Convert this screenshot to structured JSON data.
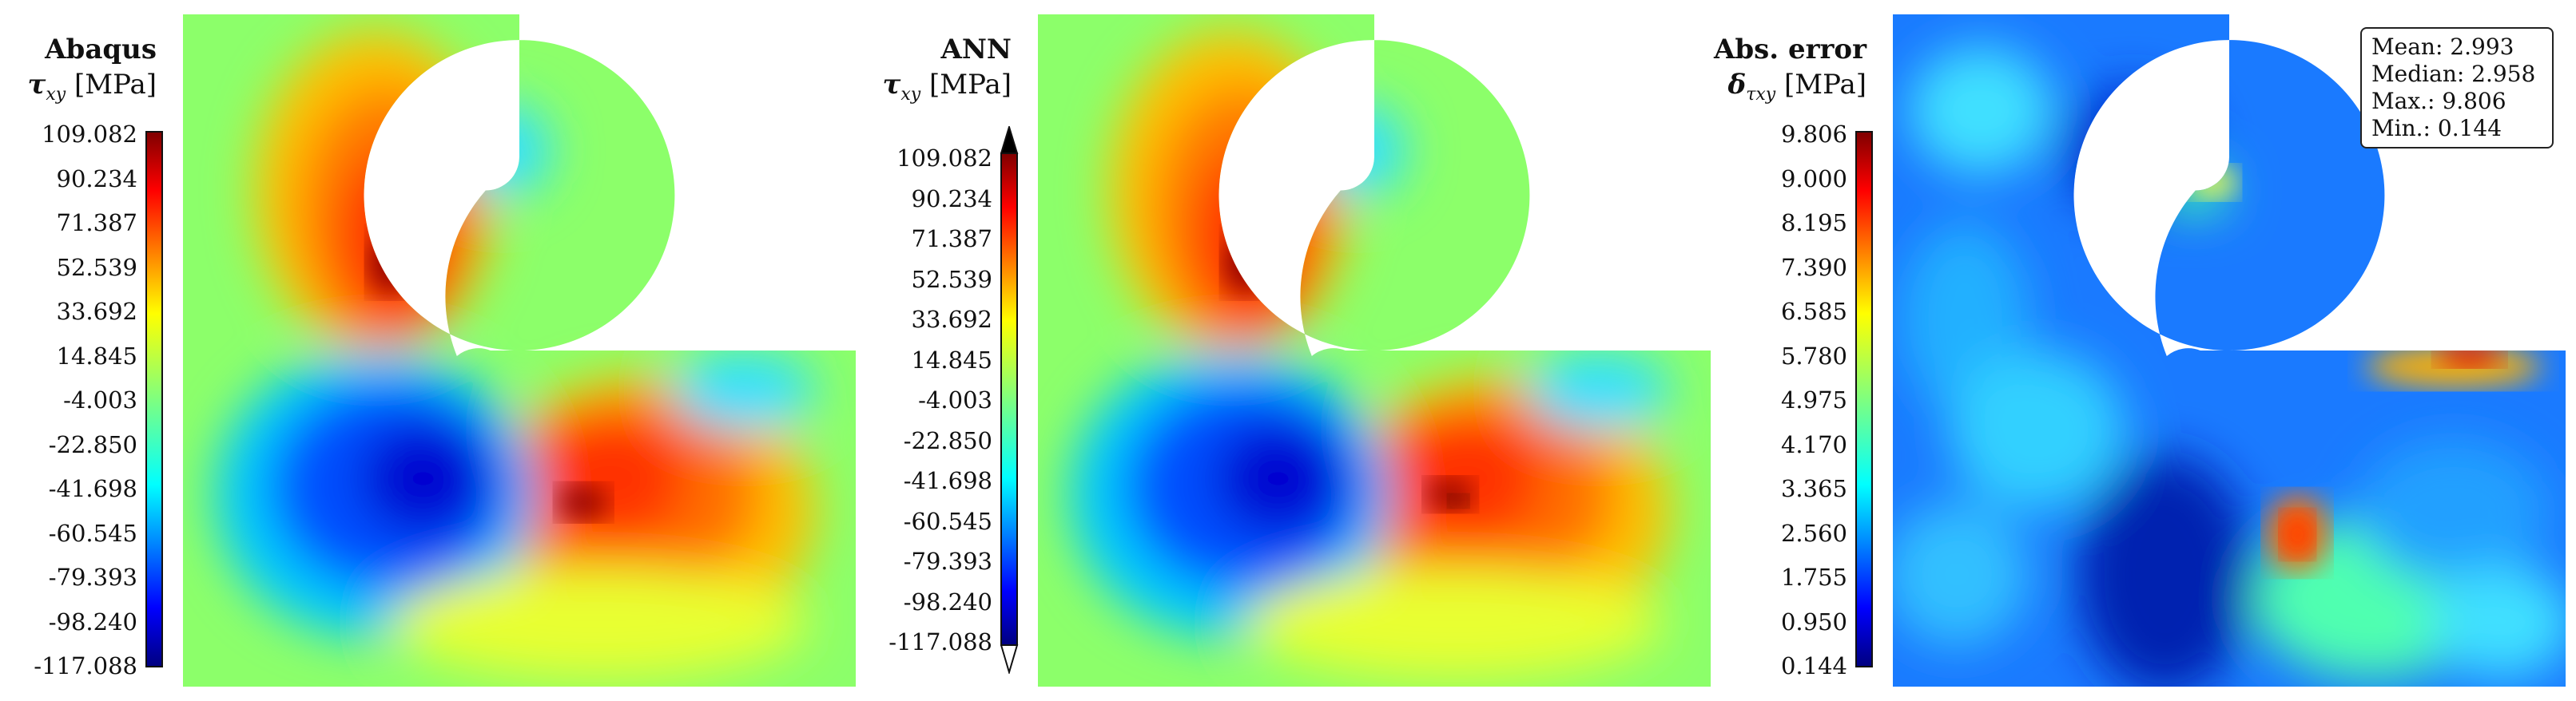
{
  "panels": [
    {
      "id": "abaqus",
      "title": "Abaqus",
      "quantity_symbol": "τ",
      "quantity_subscript": "xy",
      "unit": "[MPa]",
      "colorbar_ticks": [
        "109.082",
        "90.234",
        "71.387",
        "52.539",
        "33.692",
        "14.845",
        "-4.003",
        "-22.850",
        "-41.698",
        "-60.545",
        "-79.393",
        "-98.240",
        "-117.088"
      ],
      "colorbar_extended": false
    },
    {
      "id": "ann",
      "title": "ANN",
      "quantity_symbol": "τ",
      "quantity_subscript": "xy",
      "unit": "[MPa]",
      "colorbar_ticks": [
        "109.082",
        "90.234",
        "71.387",
        "52.539",
        "33.692",
        "14.845",
        "-4.003",
        "-22.850",
        "-41.698",
        "-60.545",
        "-79.393",
        "-98.240",
        "-117.088"
      ],
      "colorbar_extended": true
    },
    {
      "id": "error",
      "title": "Abs. error",
      "quantity_symbol": "δ",
      "quantity_subscript": "τxy",
      "unit": "[MPa]",
      "colorbar_ticks": [
        "9.806",
        "9.000",
        "8.195",
        "7.390",
        "6.585",
        "5.780",
        "4.975",
        "4.170",
        "3.365",
        "2.560",
        "1.755",
        "0.950",
        "0.144"
      ],
      "colorbar_extended": false
    }
  ],
  "stats": {
    "mean": "Mean: 2.993",
    "median": "Median: 2.958",
    "max": "Max.: 9.806",
    "min": "Min.: 0.144"
  },
  "colormap": "jet"
}
